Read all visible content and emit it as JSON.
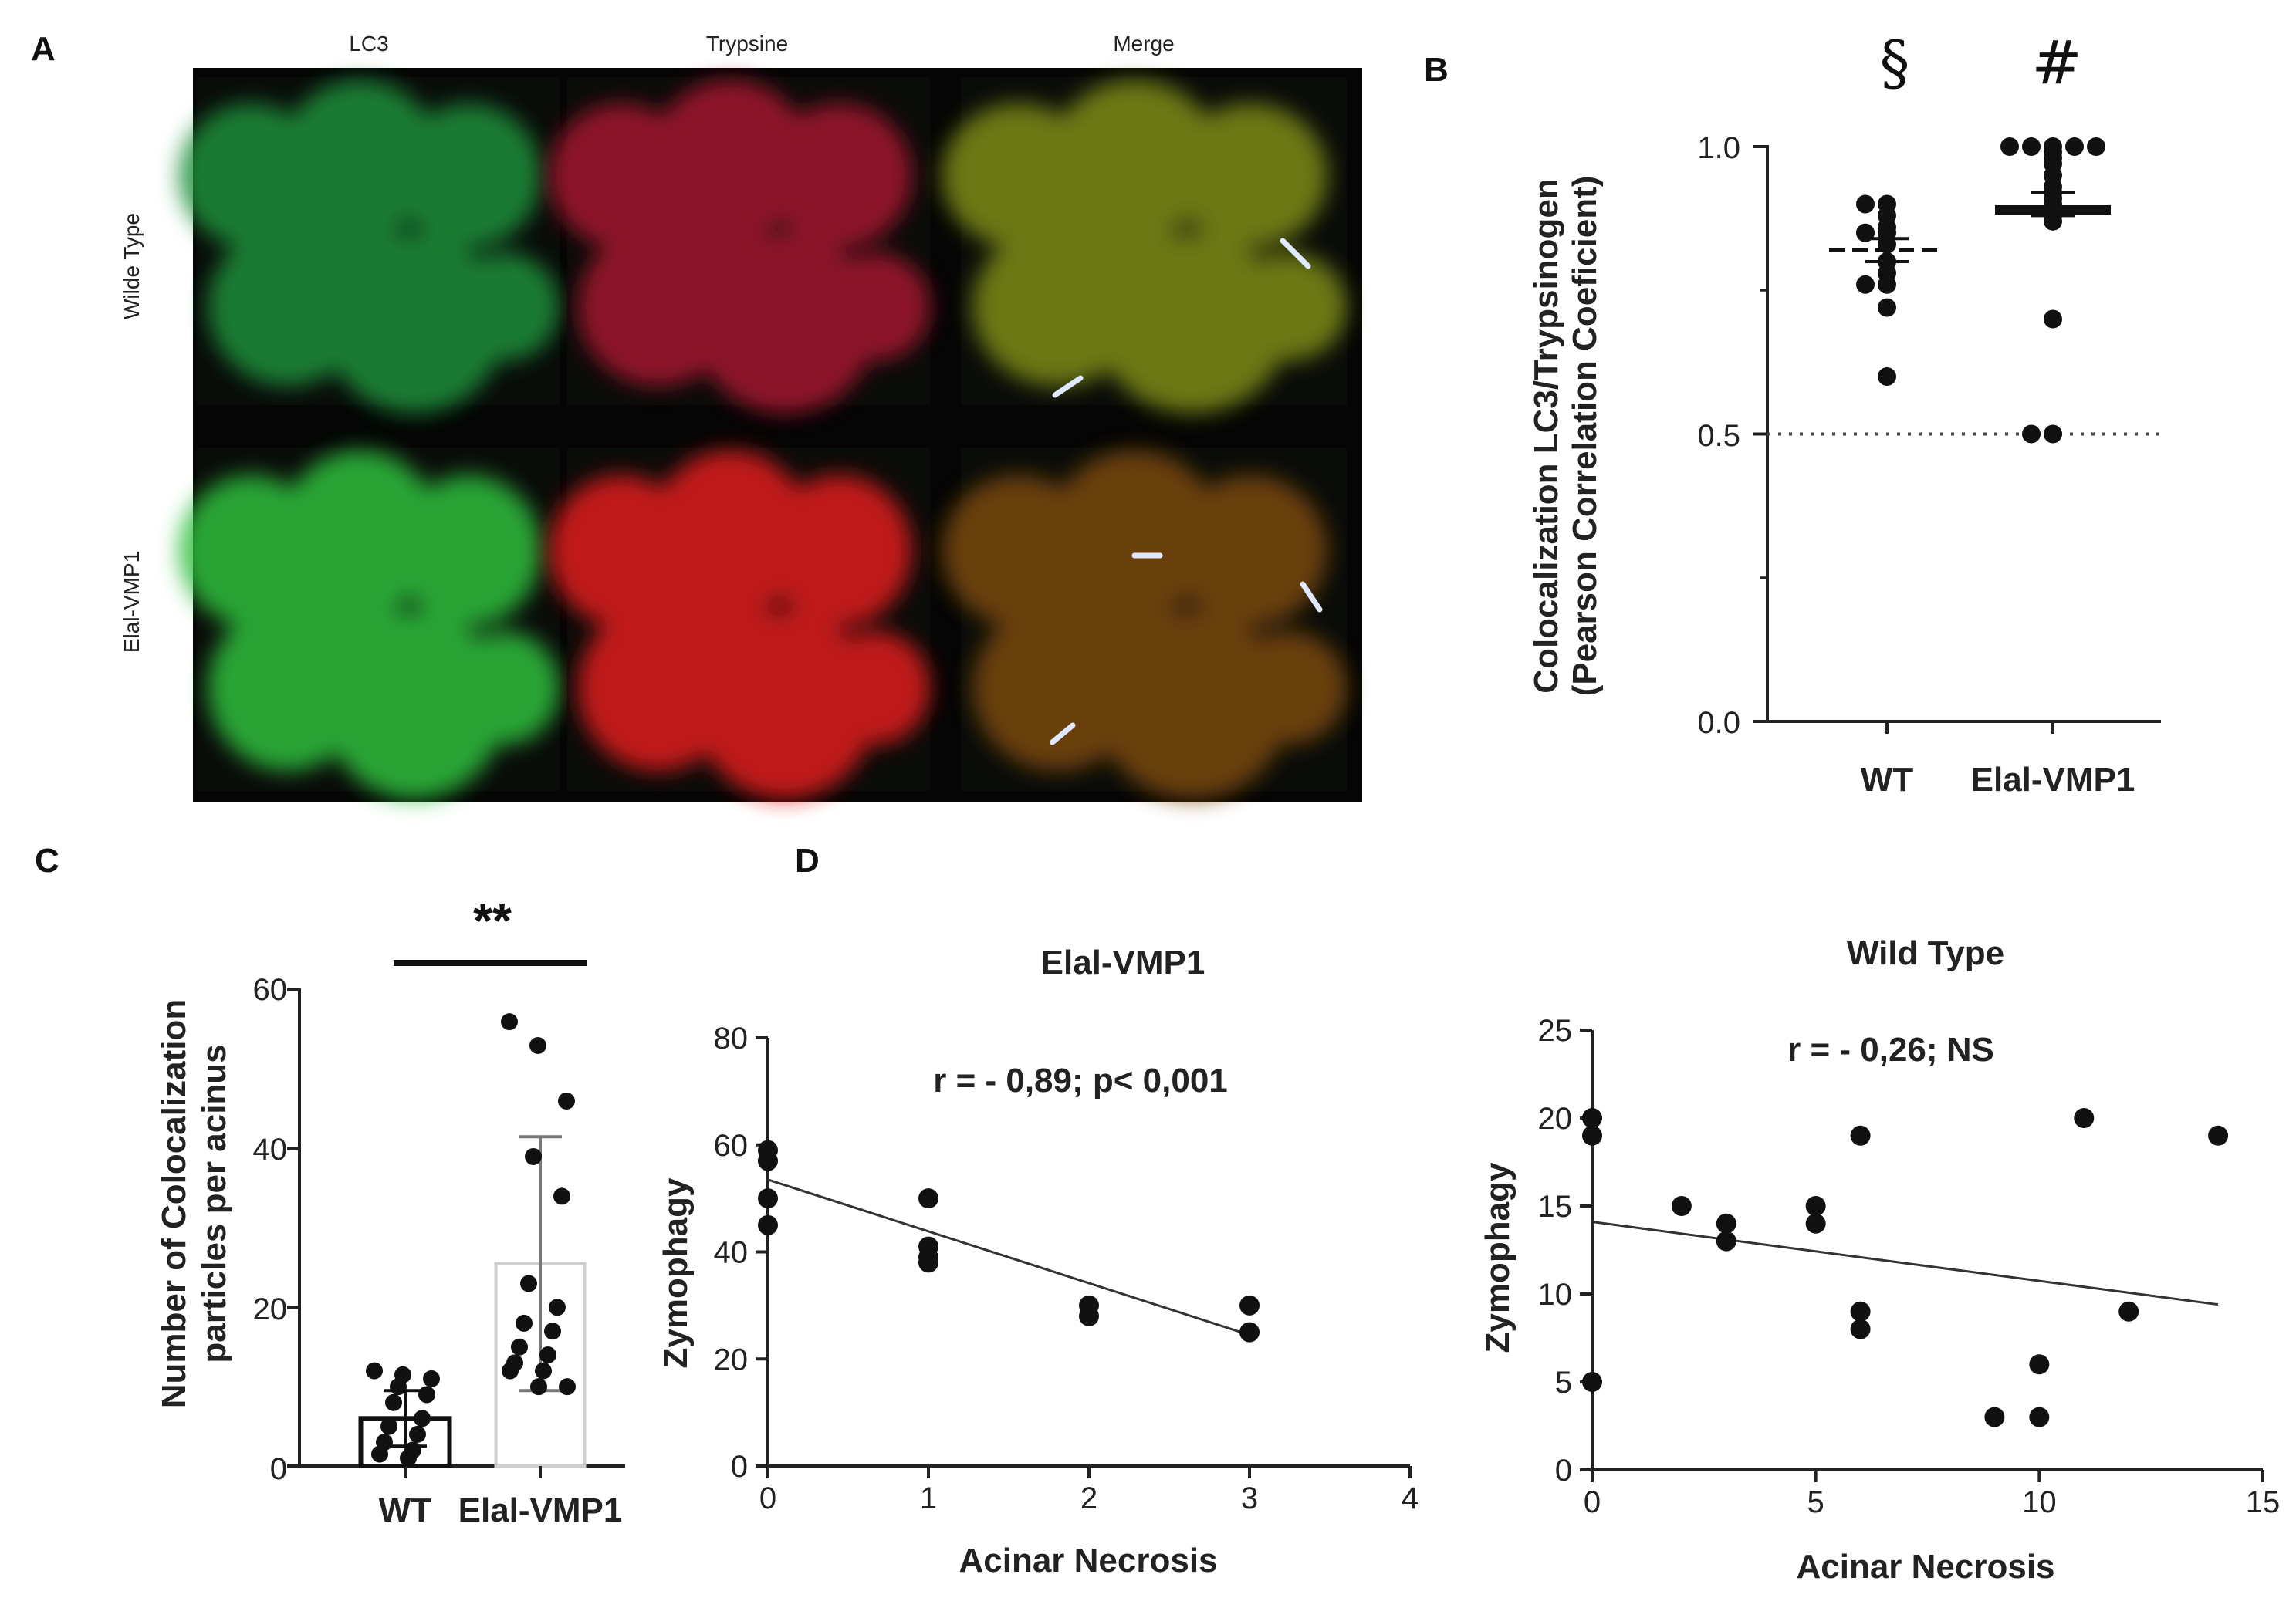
{
  "panels": {
    "a": "A",
    "b": "B",
    "c": "C",
    "d": "D"
  },
  "panelA": {
    "columns": [
      "LC3",
      "Trypsine",
      "Merge"
    ],
    "rows": [
      "Wilde Type",
      "Elal-VMP1"
    ]
  },
  "colors": {
    "lc3": "#1c8f3a",
    "trypsine": "#a5122d",
    "merge_wt": "#7d8b18",
    "merge_vmp1": "#7a4a10",
    "vmp1_lc3": "#2fbf3c",
    "vmp1_tryp": "#e01a1a"
  },
  "chart_data": [
    {
      "id": "B",
      "type": "scatter",
      "ylabel": [
        "Colocalization LC3/Trypsinogen",
        "(Pearson Correlation Coeficient)"
      ],
      "categories": [
        "WT",
        "Elal-VMP1"
      ],
      "symbols": [
        "§",
        "#"
      ],
      "ylim": [
        0.0,
        1.0
      ],
      "yticks": [
        "0.0",
        "0.5",
        "1.0"
      ],
      "reference_line": 0.5,
      "series": [
        {
          "category": "WT",
          "values": [
            0.9,
            0.9,
            0.88,
            0.86,
            0.85,
            0.85,
            0.83,
            0.8,
            0.78,
            0.76,
            0.76,
            0.72,
            0.6
          ],
          "mean": 0.82,
          "sem": [
            0.8,
            0.84
          ]
        },
        {
          "category": "Elal-VMP1",
          "values": [
            1.0,
            1.0,
            1.0,
            1.0,
            1.0,
            0.99,
            0.98,
            0.97,
            0.95,
            0.93,
            0.92,
            0.91,
            0.9,
            0.89,
            0.88,
            0.87,
            0.7,
            0.5,
            0.5
          ],
          "mean": 0.89,
          "sem": [
            0.88,
            0.92
          ]
        }
      ]
    },
    {
      "id": "C",
      "type": "bar",
      "ylabel": [
        "Number of Colocalization",
        "particles per acinus"
      ],
      "categories": [
        "WT",
        "Elal-VMP1"
      ],
      "values": [
        6,
        25.5
      ],
      "sd": [
        3.5,
        16
      ],
      "ylim": [
        0,
        60
      ],
      "yticks": [
        "0",
        "20",
        "40",
        "60"
      ],
      "significance": "**",
      "points": [
        [
          12,
          11.5,
          11,
          10,
          9,
          8,
          6,
          5,
          4,
          3,
          2,
          1.5,
          1
        ],
        [
          56,
          53,
          46,
          39,
          34,
          23,
          20,
          18,
          17,
          15,
          14,
          13,
          12,
          12,
          10,
          10
        ]
      ]
    },
    {
      "id": "D1",
      "type": "scatter",
      "title": "Elal-VMP1",
      "annotation": "r = - 0,89; p< 0,001",
      "xlabel": "Acinar Necrosis",
      "ylabel": "Zymophagy",
      "xlim": [
        0,
        4
      ],
      "ylim": [
        0,
        80
      ],
      "xticks": [
        "0",
        "1",
        "2",
        "3",
        "4"
      ],
      "yticks": [
        "0",
        "20",
        "40",
        "60",
        "80"
      ],
      "points": [
        [
          0,
          59
        ],
        [
          0,
          57
        ],
        [
          0,
          50
        ],
        [
          0,
          45
        ],
        [
          1,
          50
        ],
        [
          1,
          41
        ],
        [
          1,
          39
        ],
        [
          1,
          38
        ],
        [
          2,
          30
        ],
        [
          2,
          28
        ],
        [
          3,
          30
        ],
        [
          3,
          25
        ]
      ],
      "fit": [
        [
          0,
          53.5
        ],
        [
          3,
          24.5
        ]
      ]
    },
    {
      "id": "D2",
      "type": "scatter",
      "title": "Wild Type",
      "annotation": "r = - 0,26; NS",
      "xlabel": "Acinar Necrosis",
      "ylabel": "Zymophagy",
      "xlim": [
        0,
        15
      ],
      "ylim": [
        0,
        25
      ],
      "xticks": [
        "0",
        "5",
        "10",
        "15"
      ],
      "yticks": [
        "0",
        "5",
        "10",
        "15",
        "20",
        "25"
      ],
      "points": [
        [
          0,
          20
        ],
        [
          0,
          19
        ],
        [
          0,
          5
        ],
        [
          2,
          15
        ],
        [
          3,
          14
        ],
        [
          3,
          13
        ],
        [
          5,
          15
        ],
        [
          5,
          14
        ],
        [
          6,
          19
        ],
        [
          6,
          9
        ],
        [
          6,
          8
        ],
        [
          9,
          3
        ],
        [
          10,
          6
        ],
        [
          10,
          3
        ],
        [
          11,
          20
        ],
        [
          12,
          9
        ],
        [
          14,
          19
        ]
      ],
      "fit": [
        [
          0,
          14.1
        ],
        [
          14,
          9.4
        ]
      ]
    }
  ]
}
